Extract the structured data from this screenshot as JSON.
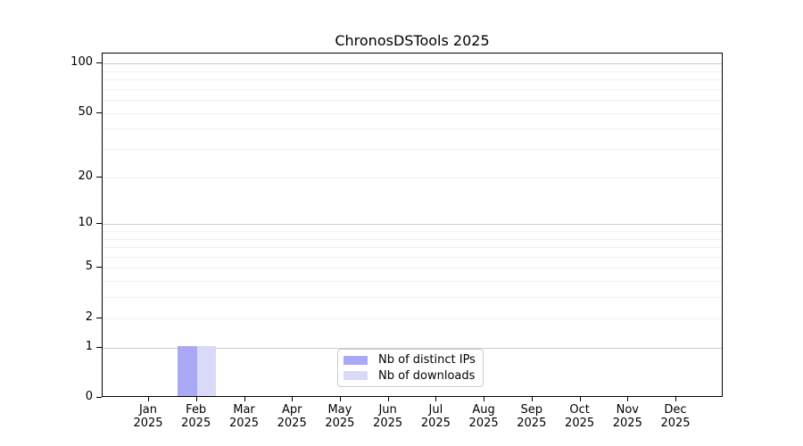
{
  "figure": {
    "title": "ChronosDSTools 2025"
  },
  "chart_data": {
    "type": "bar",
    "title": "ChronosDSTools 2025",
    "xlabel": "",
    "ylabel": "",
    "categories": [
      {
        "month": "Jan",
        "year": "2025"
      },
      {
        "month": "Feb",
        "year": "2025"
      },
      {
        "month": "Mar",
        "year": "2025"
      },
      {
        "month": "Apr",
        "year": "2025"
      },
      {
        "month": "May",
        "year": "2025"
      },
      {
        "month": "Jun",
        "year": "2025"
      },
      {
        "month": "Jul",
        "year": "2025"
      },
      {
        "month": "Aug",
        "year": "2025"
      },
      {
        "month": "Sep",
        "year": "2025"
      },
      {
        "month": "Oct",
        "year": "2025"
      },
      {
        "month": "Nov",
        "year": "2025"
      },
      {
        "month": "Dec",
        "year": "2025"
      }
    ],
    "series": [
      {
        "name": "Nb of distinct IPs",
        "color": "#a9a9f6",
        "values": [
          0,
          1,
          0,
          0,
          0,
          0,
          0,
          0,
          0,
          0,
          0,
          0
        ]
      },
      {
        "name": "Nb of downloads",
        "color": "#d9d9f8",
        "values": [
          0,
          1,
          0,
          0,
          0,
          0,
          0,
          0,
          0,
          0,
          0,
          0
        ]
      }
    ],
    "y_axis": {
      "scale": "log1p",
      "ylim": [
        0,
        115
      ],
      "labeled_ticks": [
        0,
        1,
        2,
        5,
        10,
        20,
        50,
        100
      ],
      "major_gridlines": [
        1,
        10,
        100
      ],
      "minor_gridlines": [
        2,
        3,
        4,
        5,
        6,
        7,
        8,
        9,
        20,
        30,
        40,
        50,
        60,
        70,
        80,
        90
      ]
    },
    "legend": {
      "location": "lower center"
    },
    "grid": true,
    "colors": {
      "axis": "#000000",
      "grid_major": "#cccccc",
      "grid_minor": "#f0f0f0"
    }
  }
}
